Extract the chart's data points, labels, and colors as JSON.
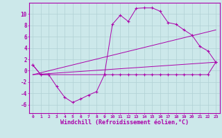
{
  "background_color": "#cce8ea",
  "grid_color": "#b0d0d4",
  "line_color": "#aa00aa",
  "xlabel": "Windchill (Refroidissement éolien,°C)",
  "xlabel_fontsize": 6,
  "xtick_labels": [
    "0",
    "1",
    "2",
    "3",
    "4",
    "5",
    "6",
    "7",
    "8",
    "9",
    "10",
    "11",
    "12",
    "13",
    "14",
    "15",
    "16",
    "17",
    "18",
    "19",
    "20",
    "21",
    "22",
    "23"
  ],
  "ytick_values": [
    -6,
    -4,
    -2,
    0,
    2,
    4,
    6,
    8,
    10
  ],
  "ylim": [
    -7.5,
    12
  ],
  "xlim": [
    -0.5,
    23.5
  ],
  "series": [
    {
      "x": [
        0,
        1,
        2,
        3,
        4,
        5,
        6,
        7,
        8,
        9,
        10,
        11,
        12,
        13,
        14,
        15,
        16,
        17,
        18,
        19,
        20,
        21,
        22,
        23
      ],
      "y": [
        1.0,
        -0.7,
        -0.7,
        -2.8,
        -4.7,
        -5.6,
        -5.0,
        -4.3,
        -3.7,
        -0.7,
        -0.7,
        -0.7,
        -0.7,
        -0.7,
        -0.7,
        -0.7,
        -0.7,
        -0.7,
        -0.7,
        -0.7,
        -0.7,
        -0.7,
        -0.7,
        1.5
      ],
      "has_markers": true
    },
    {
      "x": [
        0,
        23
      ],
      "y": [
        -0.7,
        7.2
      ],
      "has_markers": false
    },
    {
      "x": [
        0,
        23
      ],
      "y": [
        -0.7,
        1.5
      ],
      "has_markers": false
    },
    {
      "x": [
        0,
        1,
        2,
        9,
        10,
        11,
        12,
        13,
        14,
        15,
        16,
        17,
        18,
        19,
        20,
        21,
        22,
        23
      ],
      "y": [
        1.0,
        -0.7,
        -0.7,
        -0.7,
        8.2,
        9.8,
        8.7,
        11.0,
        11.1,
        11.1,
        10.5,
        8.5,
        8.2,
        7.2,
        6.3,
        4.3,
        3.5,
        1.5
      ],
      "has_markers": true
    }
  ]
}
